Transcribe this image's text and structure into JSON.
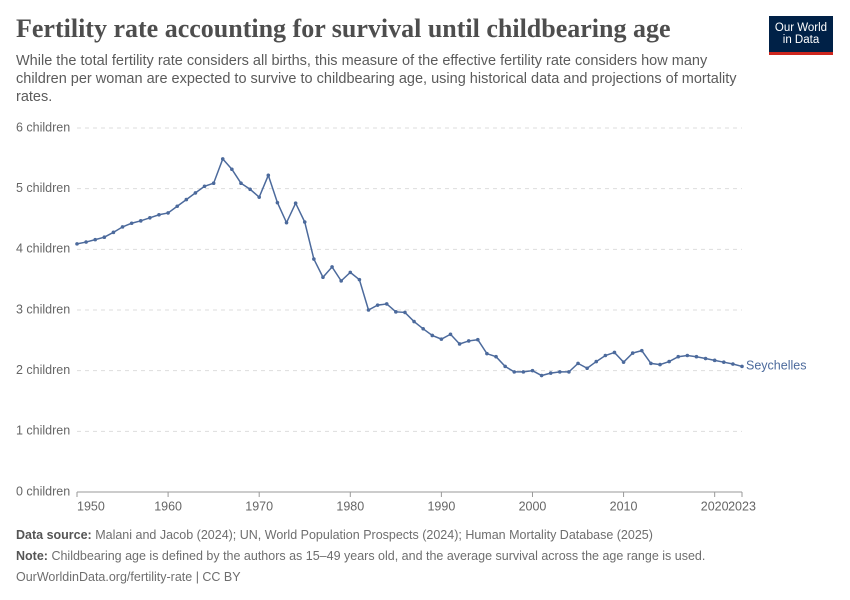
{
  "chart_data": {
    "type": "line",
    "title": "Fertility rate accounting for survival until childbearing age",
    "subtitle": "While the total fertility rate considers all births, this measure of the effective fertility rate considers how many children per woman are expected to survive to childbearing age, using historical data and projections of mortality rates.",
    "logo": "Our World in Data",
    "x": [
      1950,
      1951,
      1952,
      1953,
      1954,
      1955,
      1956,
      1957,
      1958,
      1959,
      1960,
      1961,
      1962,
      1963,
      1964,
      1965,
      1966,
      1967,
      1968,
      1969,
      1970,
      1971,
      1972,
      1973,
      1974,
      1975,
      1976,
      1977,
      1978,
      1979,
      1980,
      1981,
      1982,
      1983,
      1984,
      1985,
      1986,
      1987,
      1988,
      1989,
      1990,
      1991,
      1992,
      1993,
      1994,
      1995,
      1996,
      1997,
      1998,
      1999,
      2000,
      2001,
      2002,
      2003,
      2004,
      2005,
      2006,
      2007,
      2008,
      2009,
      2010,
      2011,
      2012,
      2013,
      2014,
      2015,
      2016,
      2017,
      2018,
      2019,
      2020,
      2021,
      2022,
      2023
    ],
    "series": [
      {
        "name": "Seychelles",
        "color": "#4c6a9c",
        "values": [
          4.09,
          4.12,
          4.16,
          4.2,
          4.28,
          4.37,
          4.43,
          4.47,
          4.52,
          4.57,
          4.6,
          4.71,
          4.82,
          4.93,
          5.04,
          5.09,
          5.49,
          5.32,
          5.09,
          4.99,
          4.86,
          5.22,
          4.77,
          4.44,
          4.76,
          4.45,
          3.84,
          3.54,
          3.71,
          3.48,
          3.62,
          3.5,
          3.0,
          3.08,
          3.1,
          2.97,
          2.96,
          2.81,
          2.69,
          2.58,
          2.52,
          2.6,
          2.44,
          2.49,
          2.51,
          2.28,
          2.23,
          2.07,
          1.98,
          1.98,
          2.0,
          1.92,
          1.96,
          1.98,
          1.98,
          2.12,
          2.04,
          2.15,
          2.25,
          2.3,
          2.14,
          2.29,
          2.33,
          2.12,
          2.1,
          2.15,
          2.23,
          2.25,
          2.23,
          2.2,
          2.17,
          2.14,
          2.11,
          2.07
        ]
      }
    ],
    "xlim": [
      1950,
      2023
    ],
    "xticks": [
      1950,
      1960,
      1970,
      1980,
      1990,
      2000,
      2010,
      2020,
      2023
    ],
    "ylim": [
      0,
      6
    ],
    "yticks": [
      {
        "value": 0,
        "label": "0 children"
      },
      {
        "value": 1,
        "label": "1 children"
      },
      {
        "value": 2,
        "label": "2 children"
      },
      {
        "value": 3,
        "label": "3 children"
      },
      {
        "value": 4,
        "label": "4 children"
      },
      {
        "value": 5,
        "label": "5 children"
      },
      {
        "value": 6,
        "label": "6 children"
      }
    ],
    "grid": true,
    "source_label": "Data source:",
    "source": "Malani and Jacob (2024); UN, World Population Prospects (2024); Human Mortality Database (2025)",
    "note_label": "Note:",
    "note": "Childbearing age is defined by the authors as 15–49 years old, and the average survival across the age range is used.",
    "url": "OurWorldinData.org/fertility-rate | CC BY"
  }
}
